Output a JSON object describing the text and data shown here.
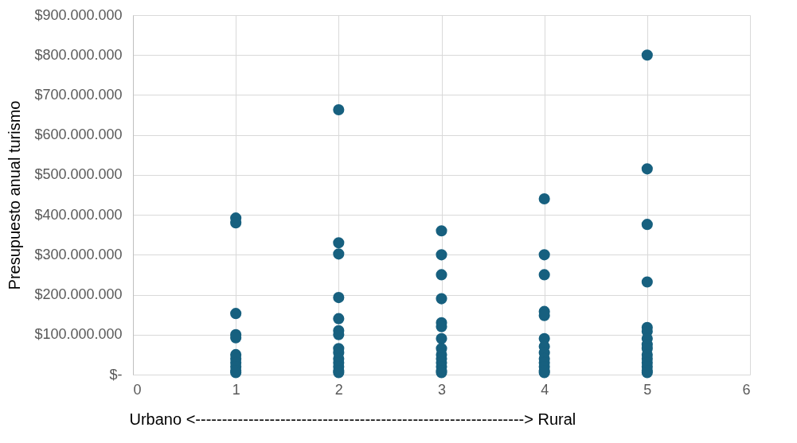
{
  "chart_data": {
    "type": "scatter",
    "xlabel": "Urbano <--------------------------------------------------------------> Rural",
    "ylabel": "Presupuesto anual turismo",
    "series": [
      {
        "color": "#17607f",
        "x": [
          1,
          1,
          1,
          1,
          1,
          1,
          1,
          1,
          1,
          1,
          1,
          2,
          2,
          2,
          2,
          2,
          2,
          2,
          2,
          2,
          2,
          2,
          2,
          2,
          2,
          3,
          3,
          3,
          3,
          3,
          3,
          3,
          3,
          3,
          3,
          3,
          3,
          3,
          3,
          4,
          4,
          4,
          4,
          4,
          4,
          4,
          4,
          4,
          4,
          4,
          4,
          4,
          5,
          5,
          5,
          5,
          5,
          5,
          5,
          5,
          5,
          5,
          5,
          5,
          5,
          5,
          5
        ],
        "values": [
          392000000,
          380000000,
          153000000,
          100000000,
          92000000,
          50000000,
          40000000,
          30000000,
          20000000,
          10000000,
          5000000,
          663000000,
          330000000,
          302000000,
          193000000,
          140000000,
          110000000,
          100000000,
          65000000,
          55000000,
          40000000,
          30000000,
          20000000,
          10000000,
          5000000,
          360000000,
          300000000,
          250000000,
          190000000,
          130000000,
          120000000,
          90000000,
          65000000,
          50000000,
          40000000,
          30000000,
          20000000,
          10000000,
          5000000,
          440000000,
          300000000,
          250000000,
          158000000,
          148000000,
          90000000,
          70000000,
          55000000,
          40000000,
          30000000,
          20000000,
          10000000,
          5000000,
          800000000,
          515000000,
          376000000,
          232000000,
          118000000,
          108000000,
          90000000,
          75000000,
          65000000,
          50000000,
          40000000,
          30000000,
          20000000,
          10000000,
          5000000
        ]
      }
    ],
    "xlim": [
      0,
      6
    ],
    "xticks": [
      0,
      1,
      2,
      3,
      4,
      5,
      6
    ],
    "ylim": [
      0,
      900000000
    ],
    "yticks": [
      {
        "value": 0,
        "label": "$-"
      },
      {
        "value": 100000000,
        "label": "$100.000.000"
      },
      {
        "value": 200000000,
        "label": "$200.000.000"
      },
      {
        "value": 300000000,
        "label": "$300.000.000"
      },
      {
        "value": 400000000,
        "label": "$400.000.000"
      },
      {
        "value": 500000000,
        "label": "$500.000.000"
      },
      {
        "value": 600000000,
        "label": "$600.000.000"
      },
      {
        "value": 700000000,
        "label": "$700.000.000"
      },
      {
        "value": 800000000,
        "label": "$800.000.000"
      },
      {
        "value": 900000000,
        "label": "$900.000.000"
      }
    ],
    "grid": true,
    "marker": "circle"
  }
}
